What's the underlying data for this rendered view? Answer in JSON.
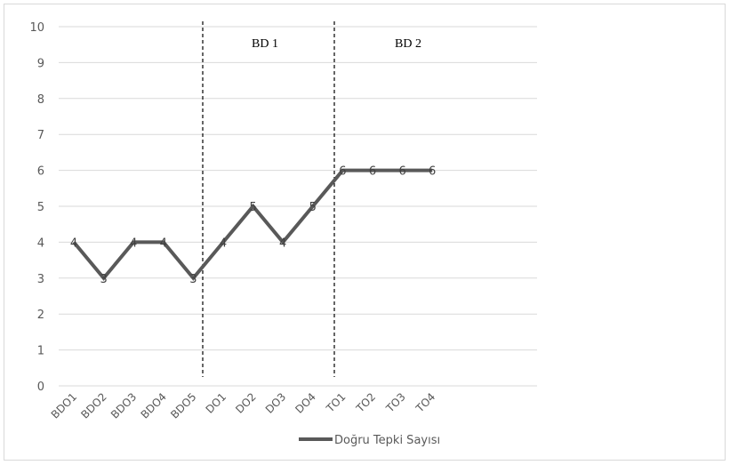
{
  "chart_data": {
    "type": "line",
    "categories": [
      "BDO1",
      "BDO2",
      "BDO3",
      "BDO4",
      "BDO5",
      "DO1",
      "DO2",
      "DO3",
      "DO4",
      "TO1",
      "TO2",
      "TO3",
      "TO4"
    ],
    "series": [
      {
        "name": "Doğru Tepki Sayısı",
        "values": [
          4,
          3,
          4,
          4,
          3,
          4,
          5,
          4,
          5,
          6,
          6,
          6,
          6
        ],
        "color": "#595959"
      }
    ],
    "data_labels": [
      "4",
      "3",
      "4",
      "4",
      "3",
      "4",
      "5",
      "4",
      "5",
      "6",
      "6",
      "6",
      "6"
    ],
    "ylim": [
      0,
      10
    ],
    "yticks": [
      "0",
      "1",
      "2",
      "3",
      "4",
      "5",
      "6",
      "7",
      "8",
      "9",
      "10"
    ],
    "grid": true,
    "legend": "bottom",
    "phase_lines_after": [
      "BDO5",
      "DO4"
    ],
    "phase_labels": [
      "BD 1",
      "BD 2"
    ],
    "gridline_color": "#d9d9d9"
  }
}
